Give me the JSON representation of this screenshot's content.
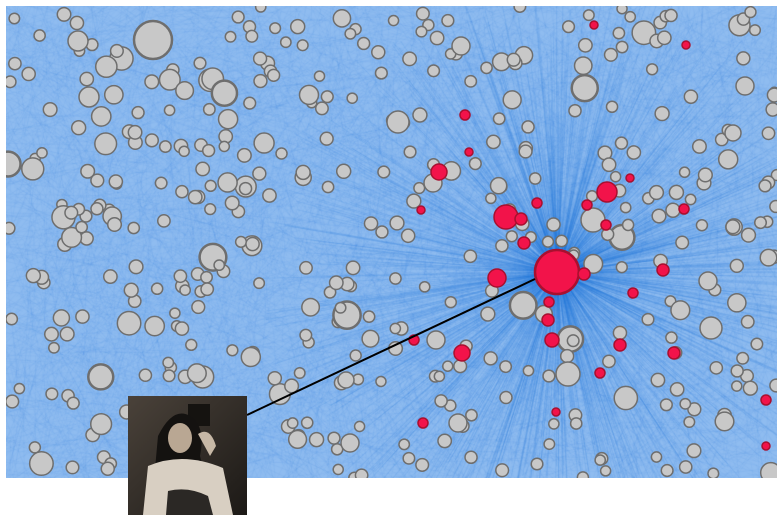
{
  "graph": {
    "type": "network",
    "colors": {
      "background": "#8fbcf0",
      "edge": "#1e6fd9",
      "node_default": "#c8c8c8",
      "node_default_stroke": "#6e6e6e",
      "node_highlight": "#f2134a",
      "node_highlight_stroke": "#a8102f",
      "connector_line": "#000000"
    },
    "highlighted_node": {
      "color": "#f2134a",
      "linked_image": "portrait-photo"
    }
  },
  "photo": {
    "description_icon": "portrait-photo-icon"
  }
}
